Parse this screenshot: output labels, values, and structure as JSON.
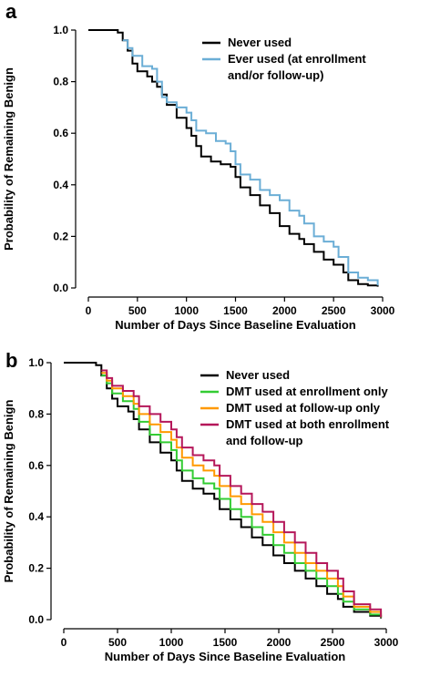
{
  "chart_data": [
    {
      "panel": "a",
      "type": "line",
      "step": true,
      "xlabel": "Number of Days Since Baseline Evaluation",
      "ylabel": "Probability of Remaining Benign",
      "xlim": [
        0,
        3000
      ],
      "ylim": [
        0,
        1.0
      ],
      "xticks": [
        "0",
        "500",
        "1000",
        "1500",
        "2000",
        "2500",
        "3000"
      ],
      "yticks": [
        "0.0",
        "0.2",
        "0.4",
        "0.6",
        "0.8",
        "1.0"
      ],
      "legend_position": "top-right",
      "series": [
        {
          "name": "Never used",
          "color": "#000000",
          "points": [
            [
              0,
              1.0
            ],
            [
              200,
              1.0
            ],
            [
              300,
              0.99
            ],
            [
              350,
              0.96
            ],
            [
              400,
              0.92
            ],
            [
              450,
              0.87
            ],
            [
              500,
              0.84
            ],
            [
              600,
              0.82
            ],
            [
              650,
              0.8
            ],
            [
              700,
              0.78
            ],
            [
              750,
              0.75
            ],
            [
              800,
              0.71
            ],
            [
              900,
              0.66
            ],
            [
              1000,
              0.62
            ],
            [
              1050,
              0.59
            ],
            [
              1100,
              0.55
            ],
            [
              1150,
              0.51
            ],
            [
              1250,
              0.49
            ],
            [
              1350,
              0.48
            ],
            [
              1450,
              0.47
            ],
            [
              1500,
              0.43
            ],
            [
              1550,
              0.39
            ],
            [
              1650,
              0.36
            ],
            [
              1750,
              0.32
            ],
            [
              1850,
              0.29
            ],
            [
              1950,
              0.24
            ],
            [
              2050,
              0.21
            ],
            [
              2150,
              0.19
            ],
            [
              2200,
              0.17
            ],
            [
              2300,
              0.14
            ],
            [
              2400,
              0.11
            ],
            [
              2500,
              0.09
            ],
            [
              2600,
              0.06
            ],
            [
              2650,
              0.03
            ],
            [
              2750,
              0.015
            ],
            [
              2850,
              0.01
            ],
            [
              2950,
              0.005
            ]
          ]
        },
        {
          "name": "Ever used (at enrollment and/or follow-up)",
          "color": "#6baed6",
          "points": [
            [
              350,
              0.96
            ],
            [
              400,
              0.93
            ],
            [
              450,
              0.9
            ],
            [
              550,
              0.86
            ],
            [
              650,
              0.85
            ],
            [
              700,
              0.8
            ],
            [
              750,
              0.74
            ],
            [
              800,
              0.72
            ],
            [
              900,
              0.7
            ],
            [
              1000,
              0.68
            ],
            [
              1050,
              0.65
            ],
            [
              1100,
              0.61
            ],
            [
              1200,
              0.6
            ],
            [
              1300,
              0.57
            ],
            [
              1400,
              0.56
            ],
            [
              1450,
              0.53
            ],
            [
              1500,
              0.48
            ],
            [
              1550,
              0.44
            ],
            [
              1650,
              0.42
            ],
            [
              1750,
              0.38
            ],
            [
              1850,
              0.36
            ],
            [
              1950,
              0.34
            ],
            [
              2050,
              0.3
            ],
            [
              2150,
              0.28
            ],
            [
              2200,
              0.25
            ],
            [
              2300,
              0.2
            ],
            [
              2400,
              0.18
            ],
            [
              2500,
              0.16
            ],
            [
              2550,
              0.12
            ],
            [
              2650,
              0.06
            ],
            [
              2750,
              0.04
            ],
            [
              2850,
              0.03
            ],
            [
              2950,
              0.01
            ]
          ]
        }
      ],
      "legend": [
        "Never used",
        "Ever used (at enrollment",
        "and/or follow-up)"
      ]
    },
    {
      "panel": "b",
      "type": "line",
      "step": true,
      "xlabel": "Number of Days Since Baseline Evaluation",
      "ylabel": "Probability of Remaining Benign",
      "xlim": [
        0,
        3000
      ],
      "ylim": [
        0,
        1.0
      ],
      "xticks": [
        "0",
        "500",
        "1000",
        "1500",
        "2000",
        "2500",
        "3000"
      ],
      "yticks": [
        "0.0",
        "0.2",
        "0.4",
        "0.6",
        "0.8",
        "1.0"
      ],
      "legend_position": "top-right",
      "series": [
        {
          "name": "Never used",
          "color": "#000000",
          "points": [
            [
              0,
              1.0
            ],
            [
              200,
              1.0
            ],
            [
              300,
              0.99
            ],
            [
              350,
              0.95
            ],
            [
              400,
              0.9
            ],
            [
              450,
              0.86
            ],
            [
              500,
              0.83
            ],
            [
              600,
              0.81
            ],
            [
              650,
              0.78
            ],
            [
              700,
              0.74
            ],
            [
              800,
              0.69
            ],
            [
              900,
              0.65
            ],
            [
              1000,
              0.62
            ],
            [
              1050,
              0.58
            ],
            [
              1100,
              0.54
            ],
            [
              1200,
              0.51
            ],
            [
              1300,
              0.49
            ],
            [
              1400,
              0.47
            ],
            [
              1450,
              0.43
            ],
            [
              1550,
              0.39
            ],
            [
              1650,
              0.36
            ],
            [
              1750,
              0.32
            ],
            [
              1850,
              0.29
            ],
            [
              1950,
              0.25
            ],
            [
              2050,
              0.22
            ],
            [
              2150,
              0.19
            ],
            [
              2250,
              0.16
            ],
            [
              2350,
              0.13
            ],
            [
              2450,
              0.1
            ],
            [
              2550,
              0.08
            ],
            [
              2600,
              0.05
            ],
            [
              2700,
              0.03
            ],
            [
              2850,
              0.015
            ],
            [
              2950,
              0.005
            ]
          ]
        },
        {
          "name": "DMT used at enrollment only",
          "color": "#33cc33",
          "points": [
            [
              350,
              0.95
            ],
            [
              400,
              0.92
            ],
            [
              450,
              0.88
            ],
            [
              550,
              0.85
            ],
            [
              650,
              0.82
            ],
            [
              700,
              0.77
            ],
            [
              800,
              0.72
            ],
            [
              900,
              0.69
            ],
            [
              1000,
              0.66
            ],
            [
              1050,
              0.62
            ],
            [
              1100,
              0.58
            ],
            [
              1200,
              0.55
            ],
            [
              1300,
              0.53
            ],
            [
              1400,
              0.51
            ],
            [
              1450,
              0.47
            ],
            [
              1550,
              0.43
            ],
            [
              1650,
              0.4
            ],
            [
              1750,
              0.36
            ],
            [
              1850,
              0.33
            ],
            [
              1950,
              0.29
            ],
            [
              2050,
              0.26
            ],
            [
              2150,
              0.22
            ],
            [
              2250,
              0.19
            ],
            [
              2350,
              0.16
            ],
            [
              2450,
              0.13
            ],
            [
              2550,
              0.1
            ],
            [
              2600,
              0.07
            ],
            [
              2700,
              0.04
            ],
            [
              2850,
              0.02
            ],
            [
              2950,
              0.008
            ]
          ]
        },
        {
          "name": "DMT used at follow-up only",
          "color": "#ff9900",
          "points": [
            [
              350,
              0.96
            ],
            [
              400,
              0.93
            ],
            [
              450,
              0.9
            ],
            [
              550,
              0.87
            ],
            [
              650,
              0.84
            ],
            [
              700,
              0.8
            ],
            [
              800,
              0.76
            ],
            [
              900,
              0.73
            ],
            [
              1000,
              0.7
            ],
            [
              1050,
              0.67
            ],
            [
              1100,
              0.63
            ],
            [
              1200,
              0.6
            ],
            [
              1300,
              0.58
            ],
            [
              1400,
              0.56
            ],
            [
              1450,
              0.52
            ],
            [
              1550,
              0.48
            ],
            [
              1650,
              0.45
            ],
            [
              1750,
              0.41
            ],
            [
              1850,
              0.38
            ],
            [
              1950,
              0.34
            ],
            [
              2050,
              0.3
            ],
            [
              2150,
              0.26
            ],
            [
              2250,
              0.22
            ],
            [
              2350,
              0.19
            ],
            [
              2450,
              0.16
            ],
            [
              2550,
              0.13
            ],
            [
              2600,
              0.09
            ],
            [
              2700,
              0.05
            ],
            [
              2850,
              0.03
            ],
            [
              2950,
              0.01
            ]
          ]
        },
        {
          "name": "DMT used at both enrollment and follow-up",
          "color": "#b5175a",
          "points": [
            [
              350,
              0.97
            ],
            [
              400,
              0.94
            ],
            [
              450,
              0.91
            ],
            [
              550,
              0.89
            ],
            [
              650,
              0.87
            ],
            [
              700,
              0.83
            ],
            [
              800,
              0.8
            ],
            [
              900,
              0.77
            ],
            [
              1000,
              0.74
            ],
            [
              1050,
              0.71
            ],
            [
              1100,
              0.67
            ],
            [
              1200,
              0.64
            ],
            [
              1300,
              0.62
            ],
            [
              1400,
              0.6
            ],
            [
              1450,
              0.56
            ],
            [
              1550,
              0.52
            ],
            [
              1650,
              0.49
            ],
            [
              1750,
              0.45
            ],
            [
              1850,
              0.42
            ],
            [
              1950,
              0.38
            ],
            [
              2050,
              0.34
            ],
            [
              2150,
              0.3
            ],
            [
              2250,
              0.26
            ],
            [
              2350,
              0.22
            ],
            [
              2450,
              0.19
            ],
            [
              2550,
              0.16
            ],
            [
              2600,
              0.11
            ],
            [
              2700,
              0.06
            ],
            [
              2850,
              0.04
            ],
            [
              2950,
              0.01
            ]
          ]
        }
      ],
      "legend": [
        "Never used",
        "DMT used at enrollment only",
        "DMT used at follow-up only",
        "DMT used at both enrollment",
        "and follow-up"
      ]
    }
  ],
  "panel_a_letter": "a",
  "panel_b_letter": "b"
}
